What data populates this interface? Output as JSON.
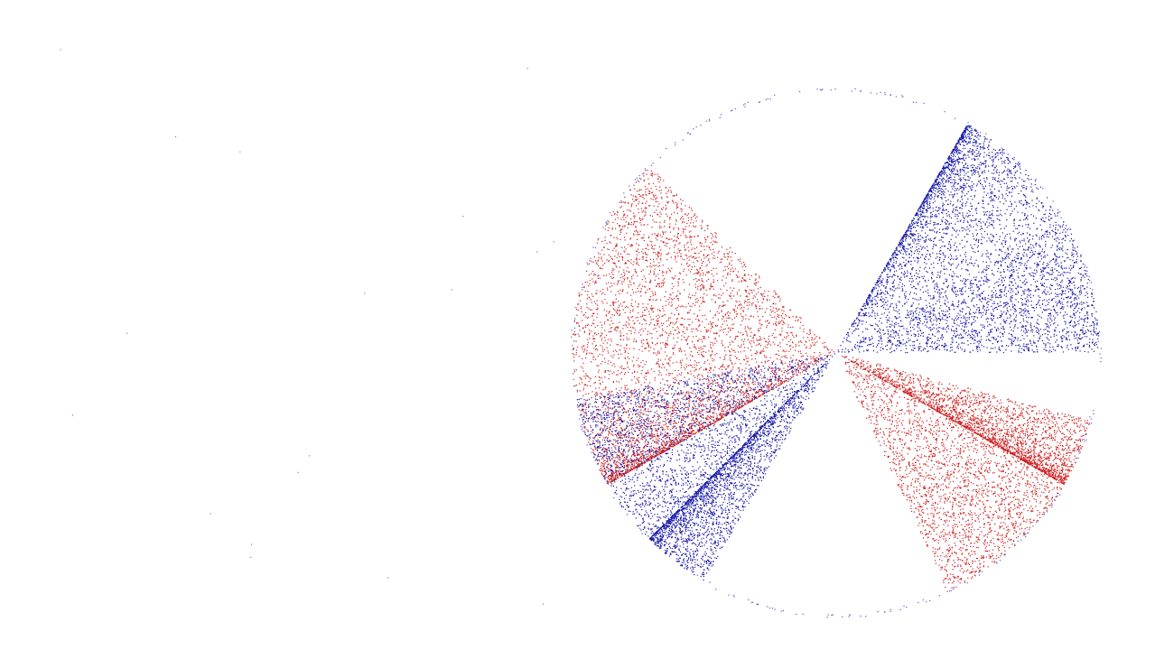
{
  "scene": {
    "background": "#ffffff",
    "description_kind": "particle-pinwheel",
    "colors": {
      "red": "#cc2222",
      "blue": "#1a1aa6",
      "rim": "#5a5ad0"
    },
    "sectors": [
      {
        "color": "red",
        "from_deg": 150,
        "to_deg": 180,
        "density": "high",
        "dense_edge": "start"
      },
      {
        "color": "red",
        "from_deg": 180,
        "to_deg": 225,
        "density": "medium",
        "dense_edge": "none"
      },
      {
        "color": "blue",
        "from_deg": 300,
        "to_deg": 330,
        "density": "high",
        "dense_edge": "start"
      },
      {
        "color": "blue",
        "from_deg": 330,
        "to_deg": 360,
        "density": "medium",
        "dense_edge": "none"
      },
      {
        "color": "red",
        "from_deg": 15,
        "to_deg": 30,
        "density": "high",
        "dense_edge": "end"
      },
      {
        "color": "red",
        "from_deg": 30,
        "to_deg": 65,
        "density": "medium",
        "dense_edge": "none"
      },
      {
        "color": "blue",
        "from_deg": 120,
        "to_deg": 135,
        "density": "high",
        "dense_edge": "end"
      },
      {
        "color": "blue",
        "from_deg": 135,
        "to_deg": 170,
        "density": "medium",
        "dense_edge": "none"
      }
    ]
  }
}
